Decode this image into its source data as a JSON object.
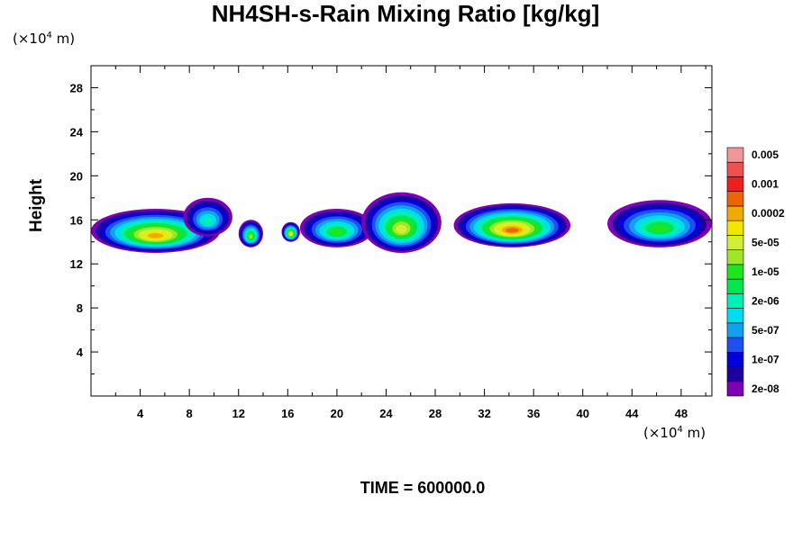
{
  "chart_data": {
    "type": "heatmap",
    "title": "NH4SH-s-Rain Mixing Ratio [kg/kg]",
    "xlabel": "",
    "ylabel": "Height",
    "x_unit_prefix": "(×10",
    "x_unit_exp": "4",
    "x_unit_suffix": " m)",
    "y_unit_prefix": "(×10",
    "y_unit_exp": "4",
    "y_unit_suffix": " m)",
    "xlim": [
      0,
      50.5
    ],
    "ylim": [
      0,
      30
    ],
    "x_ticks": [
      "4",
      "8",
      "12",
      "16",
      "20",
      "24",
      "28",
      "32",
      "36",
      "40",
      "44",
      "48"
    ],
    "x_tick_values": [
      4,
      8,
      12,
      16,
      20,
      24,
      28,
      32,
      36,
      40,
      44,
      48
    ],
    "y_ticks": [
      "4",
      "8",
      "12",
      "16",
      "20",
      "24",
      "28"
    ],
    "y_tick_values": [
      4,
      8,
      12,
      16,
      20,
      24,
      28
    ],
    "colorbar": {
      "colors": [
        "#7d00b4",
        "#1e00a0",
        "#0000dc",
        "#1e50f0",
        "#14a0f0",
        "#00dcf0",
        "#00f0b4",
        "#00e650",
        "#1ee61e",
        "#a0e628",
        "#d2f032",
        "#f0e600",
        "#f0aa00",
        "#f06400",
        "#f01e1e",
        "#f05050",
        "#f09696"
      ],
      "labels": [
        "2e-08",
        "1e-07",
        "5e-07",
        "2e-06",
        "1e-05",
        "5e-05",
        "0.0002",
        "0.001",
        "0.005"
      ]
    },
    "cells": [
      {
        "x0": 0,
        "x1": 10.5,
        "y0": 13,
        "y1": 17,
        "peak": 12
      },
      {
        "x0": 7.5,
        "x1": 11.5,
        "y0": 14.5,
        "y1": 18,
        "peak": 6
      },
      {
        "x0": 12,
        "x1": 14,
        "y0": 13.5,
        "y1": 16,
        "peak": 9
      },
      {
        "x0": 15.5,
        "x1": 17,
        "y0": 14,
        "y1": 15.8,
        "peak": 11
      },
      {
        "x0": 17,
        "x1": 23,
        "y0": 13.5,
        "y1": 17,
        "peak": 8
      },
      {
        "x0": 22,
        "x1": 28.5,
        "y0": 13,
        "y1": 18.5,
        "peak": 10
      },
      {
        "x0": 29.5,
        "x1": 39,
        "y0": 13.5,
        "y1": 17.5,
        "peak": 13
      },
      {
        "x0": 42,
        "x1": 50.5,
        "y0": 13.5,
        "y1": 17.8,
        "peak": 8
      }
    ],
    "time_label": "TIME = 600000.0"
  }
}
